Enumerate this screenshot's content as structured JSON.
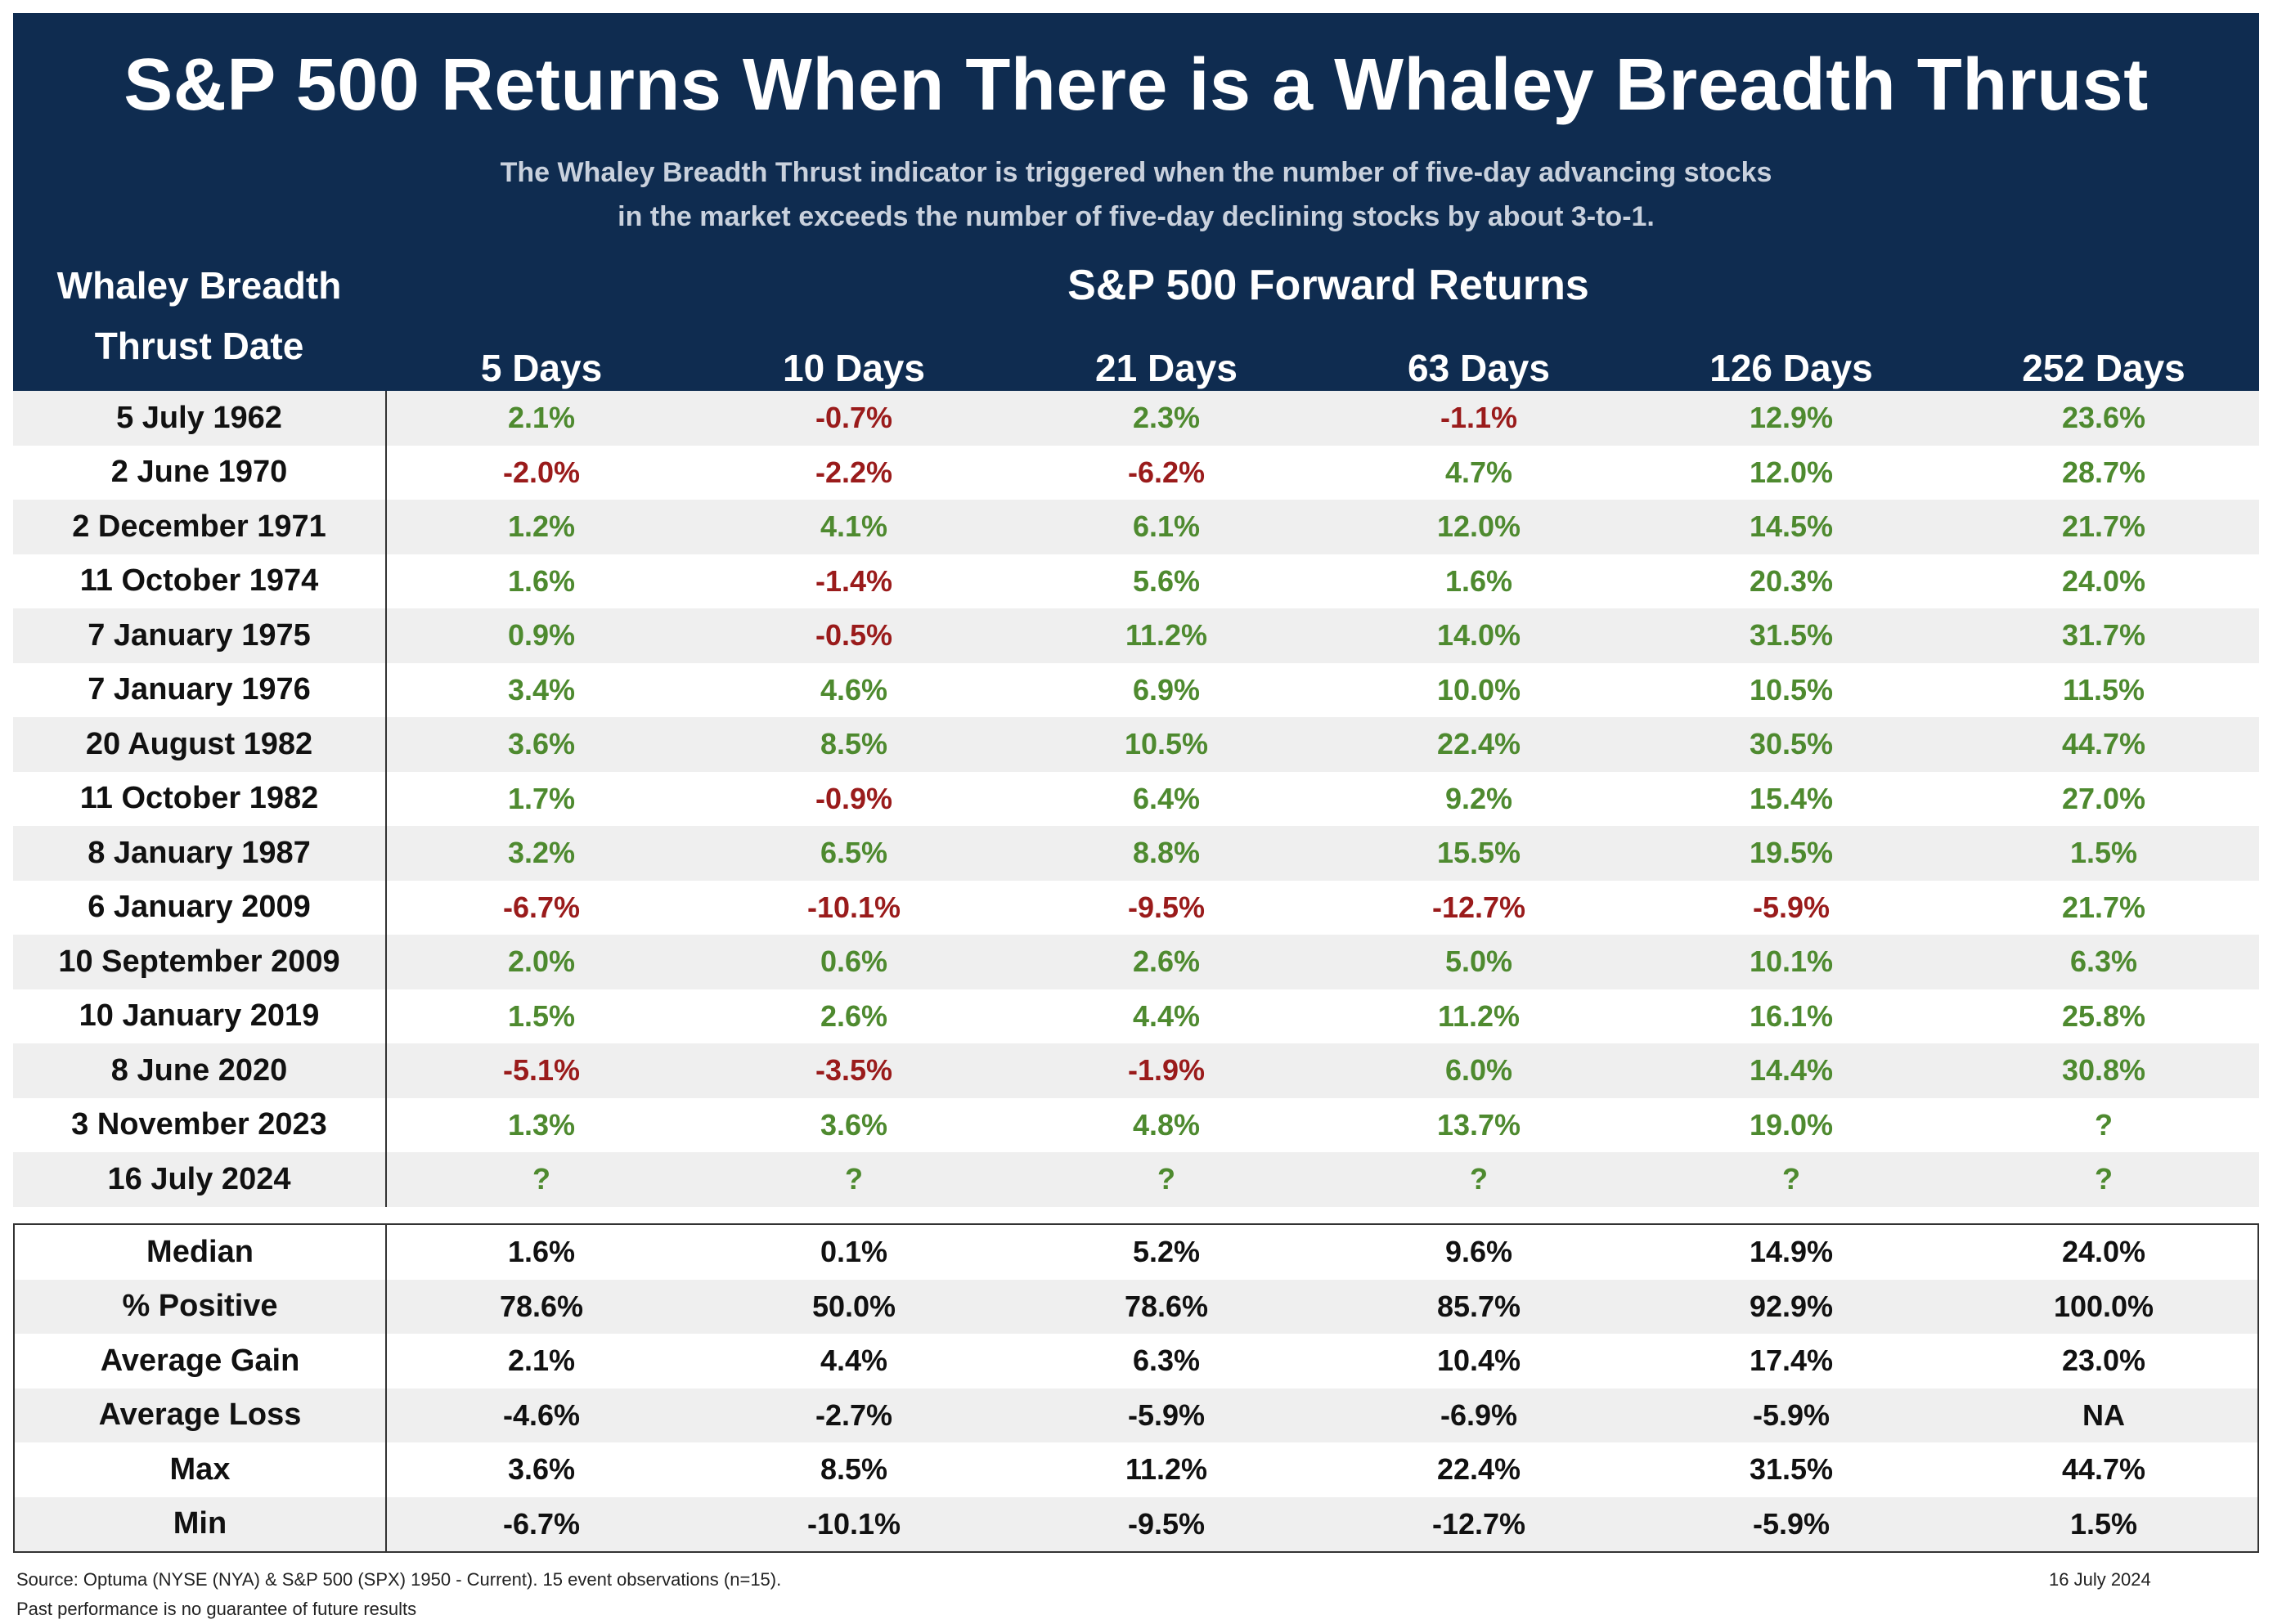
{
  "title": "S&P 500 Returns When There is a Whaley Breadth Thrust",
  "subtitle_lines": [
    "The Whaley Breadth Thrust indicator is triggered when the number of five-day advancing stocks",
    "in the market exceeds the number of five-day declining stocks by about 3-to-1."
  ],
  "date_column_header": [
    "Whaley Breadth",
    "Thrust Date"
  ],
  "forward_returns_header": "S&P 500 Forward Returns",
  "columns": [
    "5 Days",
    "10 Days",
    "21 Days",
    "63 Days",
    "126 Days",
    "252 Days"
  ],
  "colors": {
    "header_bg": "#0f2c50",
    "positive": "#4e8a2f",
    "negative": "#9a1b1b",
    "row_alt": "#efefef"
  },
  "chart_data": {
    "type": "table",
    "title": "S&P 500 Returns When There is a Whaley Breadth Thrust",
    "columns": [
      "5 Days",
      "10 Days",
      "21 Days",
      "63 Days",
      "126 Days",
      "252 Days"
    ],
    "rows": [
      {
        "date": "5 July 1962",
        "values": [
          "2.1%",
          "-0.7%",
          "2.3%",
          "-1.1%",
          "12.9%",
          "23.6%"
        ]
      },
      {
        "date": "2 June 1970",
        "values": [
          "-2.0%",
          "-2.2%",
          "-6.2%",
          "4.7%",
          "12.0%",
          "28.7%"
        ]
      },
      {
        "date": "2 December 1971",
        "values": [
          "1.2%",
          "4.1%",
          "6.1%",
          "12.0%",
          "14.5%",
          "21.7%"
        ]
      },
      {
        "date": "11 October 1974",
        "values": [
          "1.6%",
          "-1.4%",
          "5.6%",
          "1.6%",
          "20.3%",
          "24.0%"
        ]
      },
      {
        "date": "7 January 1975",
        "values": [
          "0.9%",
          "-0.5%",
          "11.2%",
          "14.0%",
          "31.5%",
          "31.7%"
        ]
      },
      {
        "date": "7 January 1976",
        "values": [
          "3.4%",
          "4.6%",
          "6.9%",
          "10.0%",
          "10.5%",
          "11.5%"
        ]
      },
      {
        "date": "20 August 1982",
        "values": [
          "3.6%",
          "8.5%",
          "10.5%",
          "22.4%",
          "30.5%",
          "44.7%"
        ]
      },
      {
        "date": "11 October 1982",
        "values": [
          "1.7%",
          "-0.9%",
          "6.4%",
          "9.2%",
          "15.4%",
          "27.0%"
        ]
      },
      {
        "date": "8 January 1987",
        "values": [
          "3.2%",
          "6.5%",
          "8.8%",
          "15.5%",
          "19.5%",
          "1.5%"
        ]
      },
      {
        "date": "6 January 2009",
        "values": [
          "-6.7%",
          "-10.1%",
          "-9.5%",
          "-12.7%",
          "-5.9%",
          "21.7%"
        ]
      },
      {
        "date": "10 September 2009",
        "values": [
          "2.0%",
          "0.6%",
          "2.6%",
          "5.0%",
          "10.1%",
          "6.3%"
        ]
      },
      {
        "date": "10 January 2019",
        "values": [
          "1.5%",
          "2.6%",
          "4.4%",
          "11.2%",
          "16.1%",
          "25.8%"
        ]
      },
      {
        "date": "8 June 2020",
        "values": [
          "-5.1%",
          "-3.5%",
          "-1.9%",
          "6.0%",
          "14.4%",
          "30.8%"
        ]
      },
      {
        "date": "3 November 2023",
        "values": [
          "1.3%",
          "3.6%",
          "4.8%",
          "13.7%",
          "19.0%",
          "?"
        ]
      },
      {
        "date": "16 July 2024",
        "values": [
          "?",
          "?",
          "?",
          "?",
          "?",
          "?"
        ]
      }
    ],
    "stats": [
      {
        "label": "Median",
        "values": [
          "1.6%",
          "0.1%",
          "5.2%",
          "9.6%",
          "14.9%",
          "24.0%"
        ]
      },
      {
        "label": "% Positive",
        "values": [
          "78.6%",
          "50.0%",
          "78.6%",
          "85.7%",
          "92.9%",
          "100.0%"
        ]
      },
      {
        "label": "Average Gain",
        "values": [
          "2.1%",
          "4.4%",
          "6.3%",
          "10.4%",
          "17.4%",
          "23.0%"
        ]
      },
      {
        "label": "Average Loss",
        "values": [
          "-4.6%",
          "-2.7%",
          "-5.9%",
          "-6.9%",
          "-5.9%",
          "NA"
        ]
      },
      {
        "label": "Max",
        "values": [
          "3.6%",
          "8.5%",
          "11.2%",
          "22.4%",
          "31.5%",
          "44.7%"
        ]
      },
      {
        "label": "Min",
        "values": [
          "-6.7%",
          "-10.1%",
          "-9.5%",
          "-12.7%",
          "-5.9%",
          "1.5%"
        ]
      }
    ]
  },
  "footer": {
    "source": "Source: Optuma (NYSE (NYA) & S&P 500 (SPX) 1950 - Current). 15 event observations (n=15).",
    "disclaimer": "Past performance is no guarantee of future results",
    "date": "16 July 2024"
  }
}
